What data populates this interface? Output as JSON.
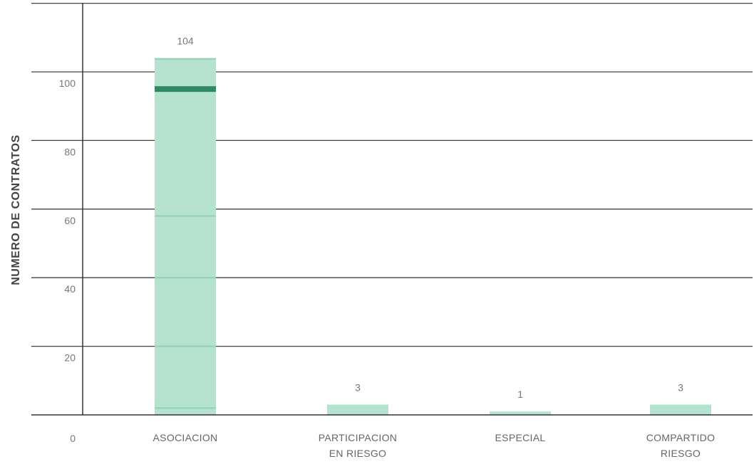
{
  "chart_data": {
    "type": "bar",
    "title": "",
    "xlabel": "",
    "ylabel": "NUMERO DE CONTRATOS",
    "categories": [
      "ASOCIACION",
      "PARTICIPACION EN RIESGO",
      "ESPECIAL",
      "COMPARTIDO RIESGO"
    ],
    "category_lines": [
      [
        "ASOCIACION"
      ],
      [
        "PARTICIPACION",
        "EN RIESGO"
      ],
      [
        "ESPECIAL"
      ],
      [
        "COMPARTIDO",
        "RIESGO"
      ]
    ],
    "values": [
      104,
      3,
      1,
      3
    ],
    "data_labels": [
      "104",
      "3",
      "1",
      "3"
    ],
    "ylim": [
      0,
      120
    ],
    "yticks": [
      0,
      20,
      40,
      60,
      80,
      100
    ],
    "ytick_labels": [
      "0",
      "20",
      "40",
      "60",
      "80",
      "100"
    ],
    "grid": true,
    "bar_color": "#b5e3cf",
    "bar_band_color": "#2e8b63"
  }
}
